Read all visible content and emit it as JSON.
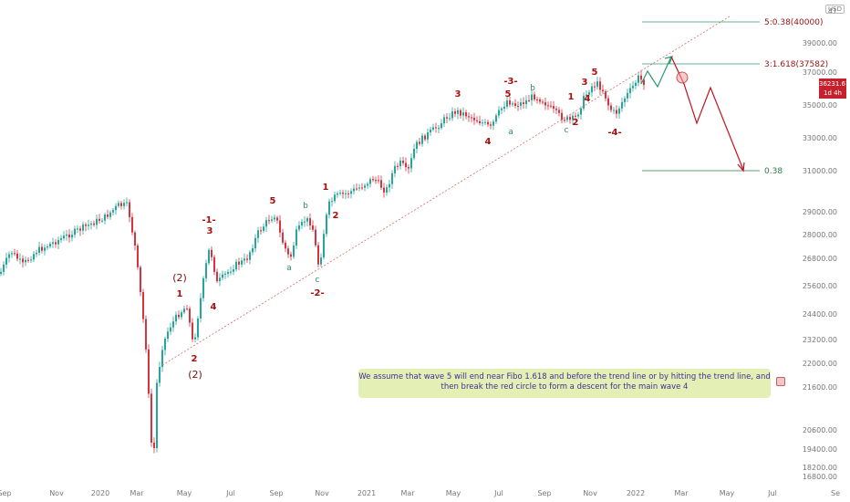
{
  "chart_data": {
    "type": "candlestick",
    "currency": "USD",
    "y_axis_ticks": [
      "41",
      "39000.00",
      "37000.00",
      "35000.00",
      "33000.00",
      "31000.00",
      "29000.00",
      "28000.00",
      "26800.00",
      "25600.00",
      "24400.00",
      "23200.00",
      "22000.00",
      "21600.00",
      "20600.00",
      "19400.00",
      "18200.00",
      "16800.00"
    ],
    "x_axis_ticks": [
      "Sep",
      "Nov",
      "2020",
      "Mar",
      "May",
      "Jul",
      "Sep",
      "Nov",
      "2021",
      "Mar",
      "May",
      "Jul",
      "Sep",
      "Nov",
      "2022",
      "Mar",
      "May",
      "Jul",
      "Se"
    ],
    "last_price": "36231.67",
    "last_price_sub": "1d 4h",
    "wave_labels": [
      "(1)",
      "(2)",
      "-1-",
      "-2-",
      "-3-",
      "-4-",
      "1",
      "2",
      "3",
      "4",
      "5",
      "a",
      "b",
      "c"
    ],
    "fib_levels": [
      {
        "label": "5:0.38(40000)",
        "value": 40000
      },
      {
        "label": "3:1.618(37582)",
        "value": 37582
      },
      {
        "label": "0.38",
        "value": 31000
      }
    ],
    "note": "We assume that wave 5 will end near Fibo 1.618 and before the trend line or by hitting the trend line, and then break the red circle to form a descent for the main wave 4"
  }
}
